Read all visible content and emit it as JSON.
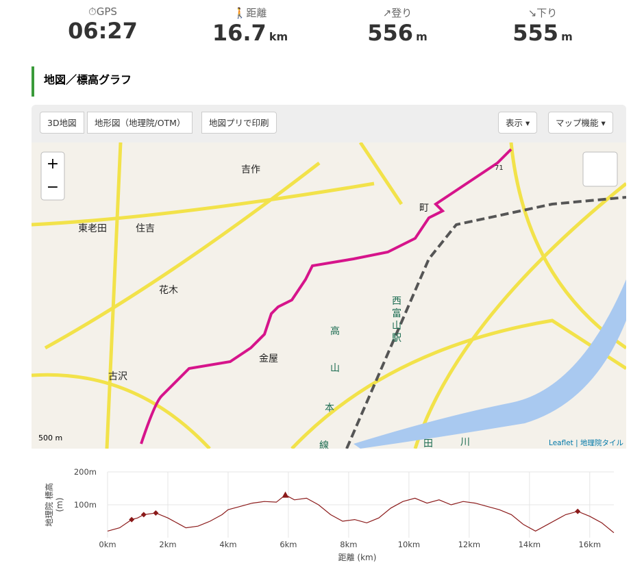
{
  "stats": [
    {
      "label": "GPS",
      "value": "06:27",
      "unit": ""
    },
    {
      "label": "距離",
      "value": "16.7",
      "unit": "km"
    },
    {
      "label": "登り",
      "value": "556",
      "unit": "m"
    },
    {
      "label": "下り",
      "value": "555",
      "unit": "m"
    }
  ],
  "section_title": "地図／標高グラフ",
  "toolbar": {
    "left": [
      "3D地図",
      "地形図（地理院/OTM）",
      "地図プリで印刷"
    ],
    "right": [
      "表示 ▾",
      "マップ機能 ▾"
    ]
  },
  "map": {
    "zoom_in": "+",
    "zoom_out": "−",
    "scale": "500 m",
    "attribution": "Leaflet | 地理院タイル",
    "labels": [
      "吉作",
      "東老田",
      "住吉",
      "花木",
      "古沢",
      "金屋",
      "西",
      "富",
      "山",
      "駅",
      "町",
      "高",
      "山",
      "本",
      "田",
      "川",
      "線",
      "71"
    ]
  },
  "chart_data": {
    "type": "line",
    "y_title": "地理院 標高\n(m)",
    "x_title": "距離 (km)",
    "x": [
      0,
      0.4,
      0.8,
      1.0,
      1.2,
      1.6,
      2.0,
      2.4,
      2.6,
      3.0,
      3.4,
      3.8,
      4.0,
      4.4,
      4.8,
      5.2,
      5.6,
      5.9,
      6.2,
      6.6,
      7.0,
      7.4,
      7.8,
      8.2,
      8.6,
      9.0,
      9.4,
      9.8,
      10.2,
      10.6,
      11.0,
      11.4,
      11.8,
      12.2,
      12.6,
      13.0,
      13.4,
      13.8,
      14.2,
      14.6,
      15.0,
      15.2,
      15.6,
      16.0,
      16.4,
      16.8
    ],
    "series": [
      {
        "name": "標高",
        "color": "#8b1a1a",
        "values": [
          20,
          30,
          55,
          60,
          70,
          75,
          60,
          40,
          30,
          35,
          50,
          70,
          85,
          95,
          105,
          110,
          108,
          130,
          115,
          120,
          100,
          70,
          50,
          55,
          45,
          60,
          90,
          110,
          120,
          105,
          115,
          100,
          110,
          105,
          95,
          85,
          70,
          40,
          20,
          40,
          60,
          70,
          80,
          65,
          45,
          15
        ]
      }
    ],
    "markers": [
      {
        "x": 0.8,
        "value": 55,
        "shape": "diamond"
      },
      {
        "x": 1.2,
        "value": 70,
        "shape": "diamond"
      },
      {
        "x": 1.6,
        "value": 75,
        "shape": "diamond"
      },
      {
        "x": 5.9,
        "value": 130,
        "shape": "triangle"
      },
      {
        "x": 15.6,
        "value": 80,
        "shape": "diamond"
      }
    ],
    "xlim": [
      0,
      16.8
    ],
    "ylim": [
      0,
      200
    ],
    "xticks": [
      {
        "value": 0,
        "label": "0km"
      },
      {
        "value": 2,
        "label": "2km"
      },
      {
        "value": 4,
        "label": "4km"
      },
      {
        "value": 6,
        "label": "6km"
      },
      {
        "value": 8,
        "label": "8km"
      },
      {
        "value": 10,
        "label": "10km"
      },
      {
        "value": 12,
        "label": "12km"
      },
      {
        "value": 14,
        "label": "14km"
      },
      {
        "value": 16,
        "label": "16km"
      }
    ],
    "yticks": [
      {
        "value": 100,
        "label": "100m"
      },
      {
        "value": 200,
        "label": "200m"
      }
    ],
    "grid": true
  }
}
